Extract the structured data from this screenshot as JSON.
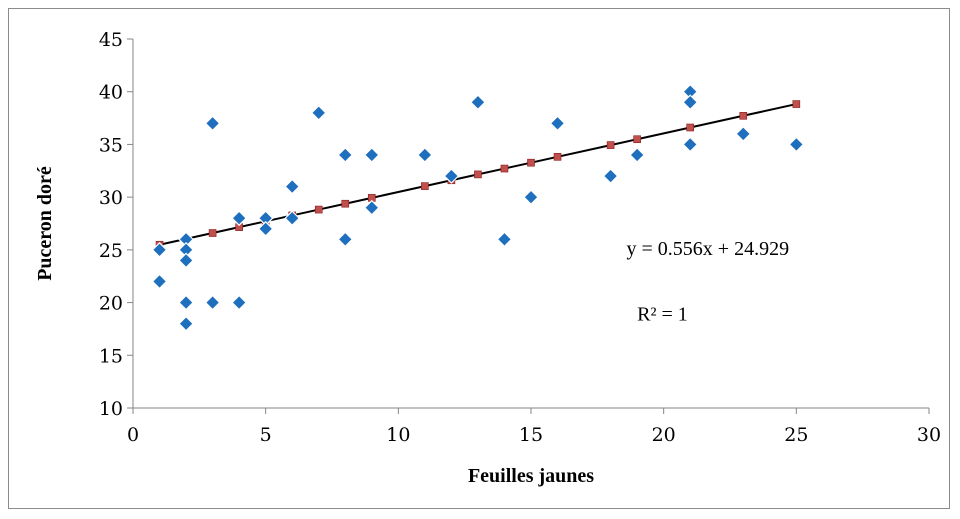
{
  "chart_data": {
    "type": "scatter",
    "xlabel": "Feuilles jaunes",
    "ylabel": "Puceron doré",
    "xlim": [
      0,
      30
    ],
    "ylim": [
      10,
      45
    ],
    "x_ticks": [
      0,
      5,
      10,
      15,
      20,
      25,
      30
    ],
    "y_ticks": [
      10,
      15,
      20,
      25,
      30,
      35,
      40,
      45
    ],
    "grid": false,
    "legend": "none",
    "series": [
      {
        "marker": "diamond",
        "color": "#1f6fbf",
        "points": [
          [
            1,
            25
          ],
          [
            1,
            22
          ],
          [
            2,
            26
          ],
          [
            2,
            25
          ],
          [
            2,
            24
          ],
          [
            2,
            20
          ],
          [
            2,
            18
          ],
          [
            3,
            37
          ],
          [
            3,
            20
          ],
          [
            4,
            28
          ],
          [
            4,
            20
          ],
          [
            5,
            28
          ],
          [
            5,
            27
          ],
          [
            6,
            31
          ],
          [
            6,
            28
          ],
          [
            7,
            38
          ],
          [
            8,
            34
          ],
          [
            8,
            26
          ],
          [
            9,
            34
          ],
          [
            9,
            29
          ],
          [
            11,
            34
          ],
          [
            12,
            32
          ],
          [
            13,
            39
          ],
          [
            14,
            26
          ],
          [
            15,
            30
          ],
          [
            16,
            37
          ],
          [
            18,
            32
          ],
          [
            19,
            34
          ],
          [
            21,
            40
          ],
          [
            21,
            39
          ],
          [
            21,
            35
          ],
          [
            23,
            36
          ],
          [
            25,
            35
          ]
        ]
      },
      {
        "marker": "square",
        "color": "#c0504d",
        "line_color": "#000000",
        "points": [
          [
            1,
            25.485
          ],
          [
            2,
            26.041
          ],
          [
            3,
            26.597
          ],
          [
            4,
            27.153
          ],
          [
            5,
            27.709
          ],
          [
            6,
            28.265
          ],
          [
            7,
            28.821
          ],
          [
            8,
            29.377
          ],
          [
            9,
            29.933
          ],
          [
            11,
            31.045
          ],
          [
            12,
            31.601
          ],
          [
            13,
            32.157
          ],
          [
            14,
            32.713
          ],
          [
            15,
            33.269
          ],
          [
            16,
            33.825
          ],
          [
            18,
            34.937
          ],
          [
            19,
            35.493
          ],
          [
            21,
            36.605
          ],
          [
            23,
            37.717
          ],
          [
            25,
            38.829
          ]
        ]
      }
    ],
    "annotations": [
      {
        "text": "y = 0.556x + 24.929",
        "x": 18.6,
        "y": 24.5
      },
      {
        "text": "R² = 1",
        "x": 19.0,
        "y": 18.3
      }
    ]
  }
}
